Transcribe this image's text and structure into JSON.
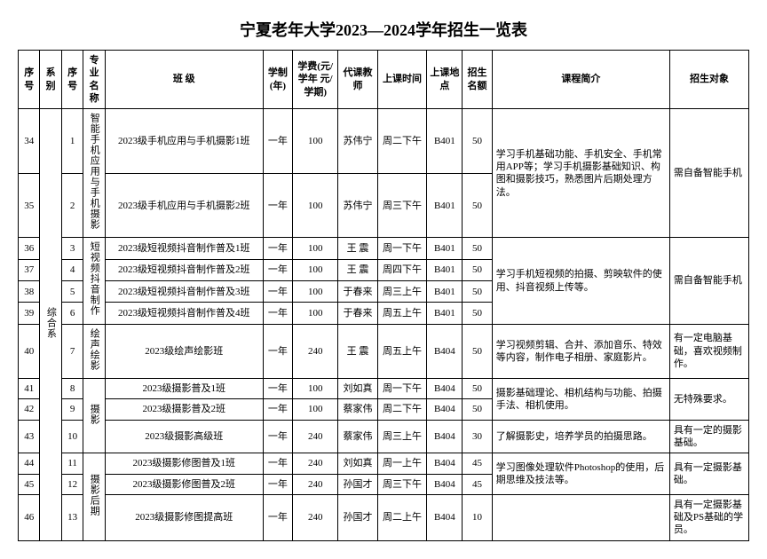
{
  "title": "宁夏老年大学2023—2024学年招生一览表",
  "headers": {
    "seq": "序号",
    "dept": "系别",
    "seq2": "序号",
    "major": "专业名称",
    "class": "班 级",
    "duration": "学制(年)",
    "fee": "学费(元/学年 元/学期)",
    "teacher": "代课教师",
    "time": "上课时间",
    "location": "上课地点",
    "quota": "招生名额",
    "intro": "课程简介",
    "target": "招生对象"
  },
  "dept": "综合系",
  "majors": {
    "m1": "智能手机应用与手机摄影",
    "m2": "短视频抖音制作",
    "m3": "绘声绘影",
    "m4": "摄影",
    "m5": "摄影后期"
  },
  "rows": [
    {
      "seq": "34",
      "s2": "1",
      "cls": "2023级手机应用与手机摄影1班",
      "dur": "一年",
      "fee": "100",
      "t": "苏伟宁",
      "time": "周二下午",
      "loc": "B401",
      "q": "50"
    },
    {
      "seq": "35",
      "s2": "2",
      "cls": "2023级手机应用与手机摄影2班",
      "dur": "一年",
      "fee": "100",
      "t": "苏伟宁",
      "time": "周三下午",
      "loc": "B401",
      "q": "50"
    },
    {
      "seq": "36",
      "s2": "3",
      "cls": "2023级短视频抖音制作普及1班",
      "dur": "一年",
      "fee": "100",
      "t": "王 震",
      "time": "周一下午",
      "loc": "B401",
      "q": "50"
    },
    {
      "seq": "37",
      "s2": "4",
      "cls": "2023级短视频抖音制作普及2班",
      "dur": "一年",
      "fee": "100",
      "t": "王 震",
      "time": "周四下午",
      "loc": "B401",
      "q": "50"
    },
    {
      "seq": "38",
      "s2": "5",
      "cls": "2023级短视频抖音制作普及3班",
      "dur": "一年",
      "fee": "100",
      "t": "于春来",
      "time": "周三上午",
      "loc": "B401",
      "q": "50"
    },
    {
      "seq": "39",
      "s2": "6",
      "cls": "2023级短视频抖音制作普及4班",
      "dur": "一年",
      "fee": "100",
      "t": "于春来",
      "time": "周五上午",
      "loc": "B401",
      "q": "50"
    },
    {
      "seq": "40",
      "s2": "7",
      "cls": "2023级绘声绘影班",
      "dur": "一年",
      "fee": "240",
      "t": "王 震",
      "time": "周五上午",
      "loc": "B404",
      "q": "50"
    },
    {
      "seq": "41",
      "s2": "8",
      "cls": "2023级摄影普及1班",
      "dur": "一年",
      "fee": "100",
      "t": "刘如真",
      "time": "周一下午",
      "loc": "B404",
      "q": "50"
    },
    {
      "seq": "42",
      "s2": "9",
      "cls": "2023级摄影普及2班",
      "dur": "一年",
      "fee": "100",
      "t": "蔡家伟",
      "time": "周二下午",
      "loc": "B404",
      "q": "50"
    },
    {
      "seq": "43",
      "s2": "10",
      "cls": "2023级摄影高级班",
      "dur": "一年",
      "fee": "240",
      "t": "蔡家伟",
      "time": "周三上午",
      "loc": "B404",
      "q": "30"
    },
    {
      "seq": "44",
      "s2": "11",
      "cls": "2023级摄影修图普及1班",
      "dur": "一年",
      "fee": "240",
      "t": "刘如真",
      "time": "周一上午",
      "loc": "B404",
      "q": "45"
    },
    {
      "seq": "45",
      "s2": "12",
      "cls": "2023级摄影修图普及2班",
      "dur": "一年",
      "fee": "240",
      "t": "孙国才",
      "time": "周三下午",
      "loc": "B404",
      "q": "45"
    },
    {
      "seq": "46",
      "s2": "13",
      "cls": "2023级摄影修图提高班",
      "dur": "一年",
      "fee": "240",
      "t": "孙国才",
      "time": "周二上午",
      "loc": "B404",
      "q": "10"
    }
  ],
  "intros": {
    "i1": "学习手机基础功能、手机安全、手机常用APP等；学习手机摄影基础知识、构图和摄影技巧，熟悉图片后期处理方法。",
    "i2": "学习手机短视频的拍摄、剪映软件的使用、抖音视频上传等。",
    "i3": "学习视频剪辑、合并、添加音乐、特效等内容，制作电子相册、家庭影片。",
    "i4": "摄影基础理论、相机结构与功能、拍摄手法、相机使用。",
    "i5": "了解摄影史，培养学员的拍摄思路。",
    "i6": "学习图像处理软件Photoshop的使用，后期思维及技法等。"
  },
  "targets": {
    "t1": "需自备智能手机",
    "t2": "需自备智能手机",
    "t3": "有一定电脑基础，喜欢视频制作。",
    "t4": "无特殊要求。",
    "t5": "具有一定的摄影基础。",
    "t6": "具有一定摄影基础。",
    "t7": "具有一定摄影基础及PS基础的学员。"
  }
}
